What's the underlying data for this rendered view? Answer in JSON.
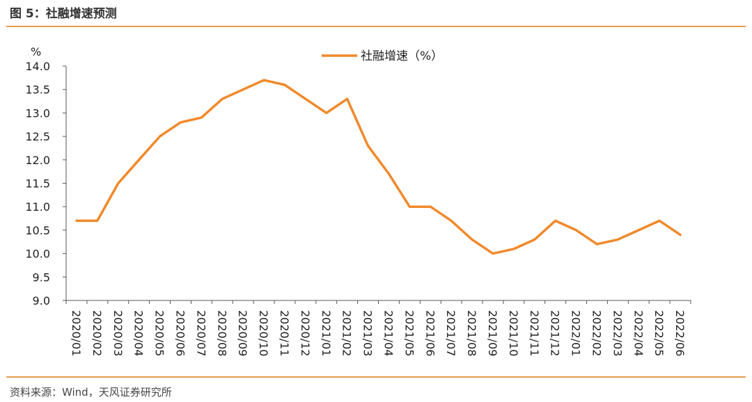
{
  "header": {
    "title": "图 5：社融增速预测"
  },
  "footer": {
    "source": "资料来源：Wind，天风证券研究所"
  },
  "chart_data": {
    "type": "line",
    "title": "",
    "xlabel": "",
    "ylabel": "%",
    "ylim": [
      9.0,
      14.0
    ],
    "ytick_step": 0.5,
    "grid": false,
    "legend_position": "top-center",
    "series_color": "#f0892b",
    "categories": [
      "2020/01",
      "2020/02",
      "2020/03",
      "2020/04",
      "2020/05",
      "2020/06",
      "2020/07",
      "2020/08",
      "2020/09",
      "2020/10",
      "2020/11",
      "2020/12",
      "2021/01",
      "2021/02",
      "2021/03",
      "2021/04",
      "2021/05",
      "2021/06",
      "2021/07",
      "2021/08",
      "2021/09",
      "2021/10",
      "2021/11",
      "2021/12",
      "2022/01",
      "2022/02",
      "2022/03",
      "2022/04",
      "2022/05",
      "2022/06"
    ],
    "series": [
      {
        "name": "社融增速（%）",
        "values": [
          10.7,
          10.7,
          11.5,
          12.0,
          12.5,
          12.8,
          12.9,
          13.3,
          13.5,
          13.7,
          13.6,
          13.3,
          13.0,
          13.3,
          12.3,
          11.7,
          11.0,
          11.0,
          10.7,
          10.3,
          10.0,
          10.1,
          10.3,
          10.7,
          10.5,
          10.2,
          10.3,
          10.5,
          10.7,
          10.4
        ]
      }
    ]
  }
}
